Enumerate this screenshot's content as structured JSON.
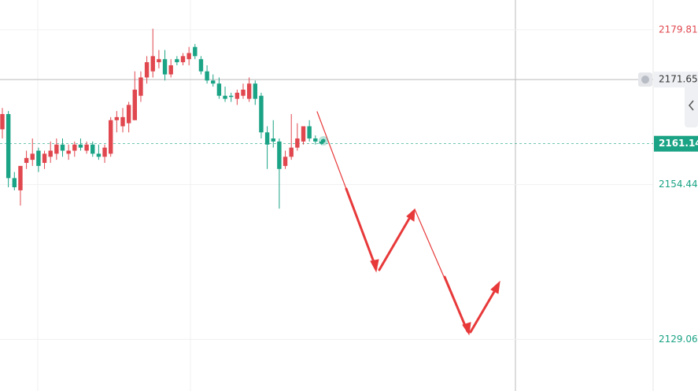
{
  "chart_data": {
    "type": "candlestick",
    "up_color": "#e0474e",
    "down_color": "#1aa385",
    "ylim": [
      2120.6,
      2184.7
    ],
    "yticks": [
      2179.81,
      2154.44,
      2129.06
    ],
    "grid": true,
    "crosshair_price": 2171.65,
    "last_price": 2161.14,
    "open": [
      2163.5,
      2166,
      2155.5,
      2153.5,
      2158,
      2158.5,
      2160,
      2158,
      2159,
      2159.5,
      2161,
      2159.5,
      2160,
      2161,
      2160,
      2161,
      2159.5,
      2159,
      2159.5,
      2165,
      2164,
      2164.5,
      2165,
      2169,
      2172,
      2173,
      2174.5,
      2175,
      2172.5,
      2175,
      2174.5,
      2175,
      2177,
      2175,
      2173,
      2171.5,
      2171,
      2169,
      2169,
      2168.5,
      2169,
      2168.5,
      2171,
      2169,
      2163,
      2162,
      2161.5,
      2157.5,
      2159,
      2160.5,
      2161.5,
      2164,
      2162,
      2161.5
    ],
    "high": [
      2167,
      2166.5,
      2156.5,
      2157.5,
      2160,
      2162,
      2160.5,
      2160,
      2161.5,
      2162,
      2162,
      2161,
      2161.5,
      2162,
      2161.5,
      2161.5,
      2161,
      2161,
      2165.5,
      2166.5,
      2167,
      2168,
      2173,
      2173,
      2175.5,
      2180,
      2176.5,
      2176.5,
      2175,
      2175.5,
      2176,
      2177,
      2177.5,
      2175.5,
      2174,
      2172.5,
      2172,
      2170.5,
      2169.5,
      2170,
      2171,
      2172,
      2171.5,
      2169.5,
      2164,
      2165,
      2162,
      2160,
      2166,
      2164.5,
      2164,
      2165,
      2162.5,
      2161.8
    ],
    "low": [
      2162,
      2154,
      2153.5,
      2151,
      2157,
      2157.5,
      2156.5,
      2157,
      2158,
      2158.5,
      2159,
      2158.5,
      2159,
      2160,
      2159.5,
      2159,
      2158.5,
      2158,
      2159,
      2163,
      2163,
      2163,
      2165,
      2168,
      2171,
      2172,
      2173.5,
      2171.5,
      2172,
      2174,
      2174,
      2174,
      2175,
      2172.5,
      2171,
      2170.5,
      2168.5,
      2168,
      2168,
      2167.5,
      2168.5,
      2168,
      2167.5,
      2162,
      2157,
      2160.5,
      2150.5,
      2157,
      2158.5,
      2160,
      2161,
      2161.5,
      2161,
      2161
    ],
    "close": [
      2166,
      2155.5,
      2154,
      2157.5,
      2158.8,
      2159.5,
      2157.5,
      2159.5,
      2160,
      2161,
      2160,
      2160,
      2161,
      2160.5,
      2161,
      2159.5,
      2159,
      2160.5,
      2165,
      2165.5,
      2165.5,
      2167.5,
      2170,
      2172,
      2174.5,
      2175.5,
      2175,
      2172.5,
      2174,
      2174.5,
      2175.5,
      2176,
      2175.5,
      2173,
      2171.5,
      2171,
      2169,
      2168.5,
      2168.8,
      2169.5,
      2170,
      2171,
      2168.5,
      2163,
      2161,
      2161.5,
      2157,
      2159,
      2160.5,
      2162,
      2164,
      2162,
      2161.5,
      2161.14
    ]
  }
}
